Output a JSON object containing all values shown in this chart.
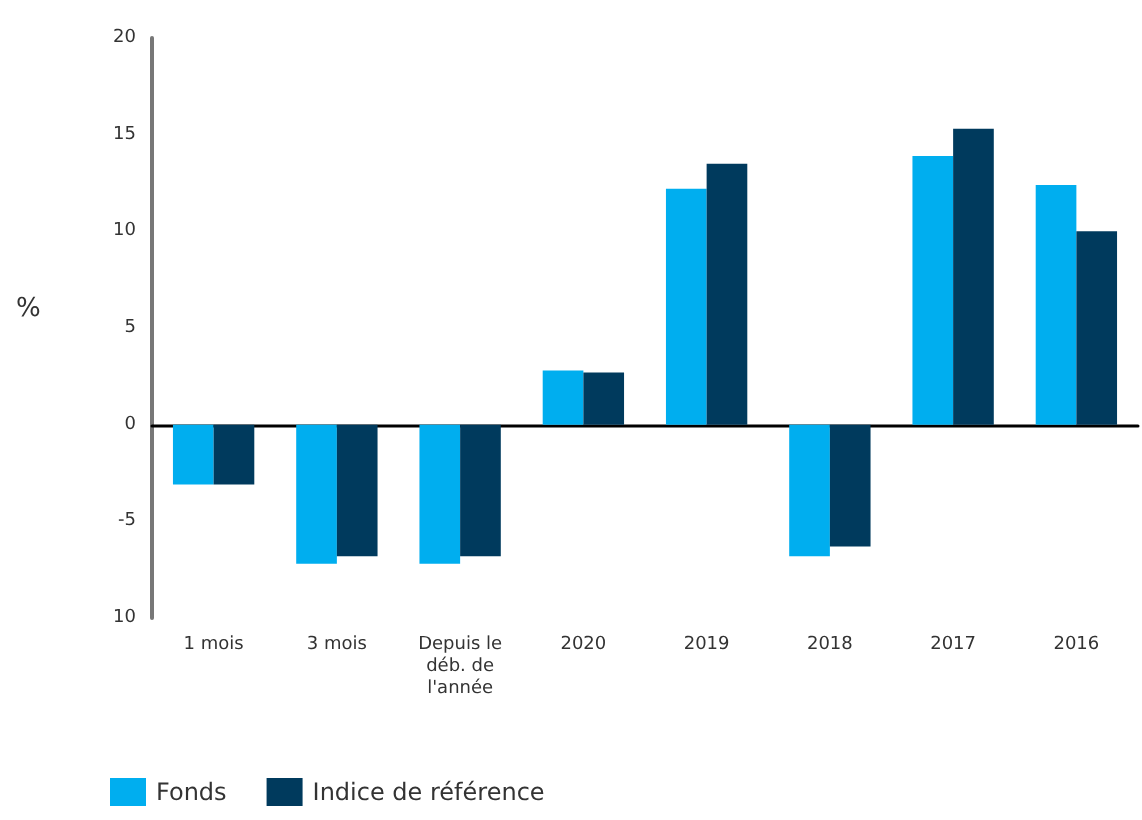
{
  "chart_data": {
    "type": "bar",
    "ylabel": "%",
    "categories": [
      "1 mois",
      "3 mois",
      "Depuis le\ndéb. de\nl'année",
      "2020",
      "2019",
      "2018",
      "2017",
      "2016"
    ],
    "series": [
      {
        "name": "Fonds",
        "color": "#00aeef",
        "values": [
          -3.1,
          -7.2,
          -7.2,
          2.8,
          12.2,
          -6.8,
          13.9,
          12.4
        ]
      },
      {
        "name": "Indice de référence",
        "color": "#003a5d",
        "values": [
          -3.1,
          -6.8,
          -6.8,
          2.7,
          13.5,
          -6.3,
          15.3,
          10.0
        ]
      }
    ],
    "ylim": [
      -10,
      20
    ],
    "yticks": [
      {
        "value": -10,
        "label": "10"
      },
      -5,
      0,
      5,
      10,
      15,
      20
    ],
    "legend": "bottom left"
  }
}
